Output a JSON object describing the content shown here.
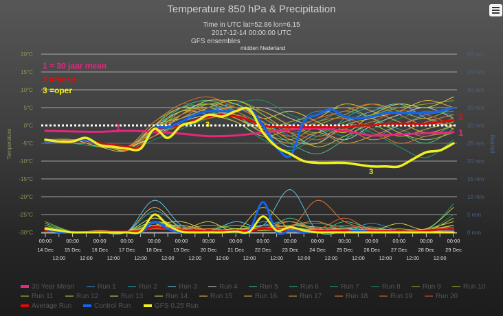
{
  "header": {
    "title": "Temperature 850 hPa & Precipitation",
    "subtitle_lines": [
      "Time in UTC lat=52.86 lon=6.15",
      "2017-12-14 00:00:00 UTC",
      "GFS ensembles",
      "midden Nederland"
    ],
    "menu_icon": "hamburger-menu-icon"
  },
  "annotations": {
    "key1": "1 = 30 jaar mean",
    "key2": "2 =mean",
    "key3": "3 =oper",
    "marker1": "1",
    "marker2": "2",
    "marker3": "3"
  },
  "colors": {
    "mean30": "#e8267f",
    "average": "#dd0a0a",
    "control": "#1565e8",
    "oper": "#f0f020",
    "left_axis": "#8a9a5b",
    "right_axis": "#45648f"
  },
  "chart_data": {
    "type": "line",
    "x_start": "2017-12-14 00:00",
    "x_tick_time_major": "00:00",
    "x_tick_dates": [
      "14 Dec",
      "15 Dec",
      "16 Dec",
      "17 Dec",
      "18 Dec",
      "19 Dec",
      "20 Dec",
      "21 Dec",
      "22 Dec",
      "23 Dec",
      "24 Dec",
      "25 Dec",
      "26 Dec",
      "27 Dec",
      "28 Dec",
      "29 Dec"
    ],
    "x_tick_time_minor": "12:00",
    "y_left": {
      "label": "Temperature",
      "range": [
        -30,
        20
      ],
      "ticks": [
        "20°C",
        "15°C",
        "10°C",
        "5°C",
        "0°C",
        "-5°C",
        "-10°C",
        "-15°C",
        "-20°C",
        "-25°C",
        "-30°C"
      ]
    },
    "y_right": {
      "label": "Rainfall",
      "range": [
        0,
        50
      ],
      "ticks": [
        "50 mm",
        "45 mm",
        "40 mm",
        "35 mm",
        "30 mm",
        "25 mm",
        "20 mm",
        "15 mm",
        "10 mm",
        "5 mm",
        "0 mm"
      ]
    },
    "grid": true,
    "zero_line": "dotted white",
    "legend_position": "bottom",
    "series": [
      {
        "name": "30 Year Mean",
        "color": "#e8267f",
        "interval_hours": 24,
        "temperature": [
          -1.5,
          -1.7,
          -1.8,
          -1.5,
          -1.8,
          -2.3,
          -3,
          -2.8,
          -2,
          -1.2,
          -0.8,
          -1.5,
          -2.8,
          -2.5,
          -2.2,
          -1.9
        ]
      },
      {
        "name": "Run 1",
        "color": "#3a8ad0",
        "interval_hours": 24,
        "temperature": [
          -4,
          -4,
          -5,
          -6,
          -1,
          3,
          5,
          3,
          -2,
          0,
          4,
          2,
          -3,
          0,
          3,
          4
        ],
        "precipitation": [
          1.5,
          0.2,
          0,
          0.3,
          4,
          1,
          0.5,
          0.2,
          3,
          1,
          0.5,
          0.5,
          2.5,
          0.5,
          0.5,
          1
        ]
      },
      {
        "name": "Run 2",
        "color": "#2aa0c0",
        "interval_hours": 24,
        "temperature": [
          -5,
          -4,
          -5,
          -6,
          -2,
          2,
          4,
          6,
          1,
          -3,
          -5,
          2,
          5,
          3,
          0,
          2
        ],
        "precipitation": [
          1,
          0.1,
          0,
          0.2,
          6,
          1.5,
          0.3,
          0.5,
          2,
          3,
          0.4,
          1.5,
          1,
          0.5,
          0.3,
          2
        ]
      },
      {
        "name": "Run 3",
        "color": "#60c0e0",
        "interval_hours": 24,
        "temperature": [
          -4,
          -5,
          -5,
          -6,
          0,
          4,
          6,
          2,
          -1,
          -6,
          -2,
          1,
          4,
          6,
          2,
          -1
        ],
        "precipitation": [
          0.5,
          0,
          0,
          0.2,
          9,
          2,
          0.5,
          3,
          2,
          12,
          0.3,
          0.3,
          0.8,
          0.2,
          0.3,
          0.5
        ]
      },
      {
        "name": "Run 4",
        "color": "#b8c8d0",
        "interval_hours": 24,
        "temperature": [
          -5,
          -4,
          -6,
          -6,
          -3,
          1,
          3,
          4,
          5,
          2,
          -1,
          -4,
          0,
          3,
          5,
          2
        ],
        "precipitation": [
          0.8,
          0,
          0,
          0.1,
          2,
          0.5,
          0.5,
          0.5,
          1,
          2,
          1.5,
          1,
          1.5,
          0.3,
          0.5,
          0.8
        ]
      },
      {
        "name": "Run 5",
        "color": "#40c080",
        "interval_hours": 24,
        "temperature": [
          -4,
          -4,
          -5,
          -7,
          -1,
          5,
          7,
          4,
          0,
          -5,
          -8,
          -4,
          1,
          -2,
          -5,
          -1
        ],
        "precipitation": [
          2.5,
          0.2,
          0,
          0.2,
          3,
          1,
          0.5,
          2,
          0.5,
          4,
          0.5,
          3,
          1,
          0.5,
          0.3,
          1
        ]
      },
      {
        "name": "Run 6",
        "color": "#30b090",
        "interval_hours": 24,
        "temperature": [
          -5,
          -4,
          -5,
          -6,
          -2,
          0,
          3,
          5,
          2,
          -2,
          1,
          4,
          2,
          -1,
          -3,
          0
        ],
        "precipitation": [
          1.5,
          0,
          0.1,
          0.2,
          4,
          0.5,
          0.3,
          0.5,
          1,
          2,
          2.5,
          1.5,
          0.5,
          0.3,
          0.5,
          1.5
        ]
      },
      {
        "name": "Run 7",
        "color": "#20a070",
        "interval_hours": 24,
        "temperature": [
          -4,
          -5,
          -6,
          -6,
          0,
          6,
          4,
          1,
          -4,
          -7,
          -3,
          0,
          -2,
          -6,
          -9,
          -4
        ],
        "precipitation": [
          1,
          0.1,
          0,
          0.1,
          2.5,
          1,
          0.5,
          1,
          0.8,
          1,
          0.5,
          0.5,
          1.5,
          0.3,
          0.4,
          8
        ]
      },
      {
        "name": "Run 8",
        "color": "#209060",
        "interval_hours": 24,
        "temperature": [
          -5,
          -4,
          -5,
          -7,
          -4,
          -1,
          2,
          6,
          7,
          3,
          0,
          -3,
          -1,
          2,
          4,
          3
        ],
        "precipitation": [
          0.5,
          0,
          0,
          0.2,
          2,
          0.5,
          0.3,
          0.5,
          1,
          0.5,
          0.5,
          2,
          0.5,
          0.5,
          0.3,
          5
        ]
      },
      {
        "name": "Run 9",
        "color": "#80b030",
        "interval_hours": 24,
        "temperature": [
          -4,
          -4,
          -5,
          -6,
          1,
          5,
          6,
          7,
          4,
          0,
          -2,
          1,
          3,
          5,
          6,
          7
        ],
        "precipitation": [
          3,
          0.2,
          0,
          0.3,
          3,
          1.5,
          1,
          2,
          1,
          3,
          1,
          1,
          0.5,
          0.5,
          0.8,
          2
        ]
      },
      {
        "name": "Run 10",
        "color": "#98b838",
        "interval_hours": 24,
        "temperature": [
          -5,
          -5,
          -5,
          -6,
          -1,
          3,
          6,
          3,
          -2,
          -4,
          0,
          3,
          6,
          4,
          2,
          5
        ],
        "precipitation": [
          2,
          0.1,
          0,
          0.2,
          2,
          1,
          2,
          1,
          1,
          2,
          1,
          0.5,
          0.5,
          1,
          0.5,
          2
        ]
      },
      {
        "name": "Run 11",
        "color": "#a8c040",
        "interval_hours": 24,
        "temperature": [
          -4,
          -4,
          -6,
          -6,
          -2,
          4,
          5,
          2,
          -1,
          1,
          3,
          5,
          2,
          -2,
          -4,
          -2
        ],
        "precipitation": [
          1.5,
          0,
          0,
          0.1,
          1.5,
          2,
          0.5,
          1,
          0.5,
          1,
          0.8,
          0.5,
          0.5,
          0.3,
          0.5,
          1
        ]
      },
      {
        "name": "Run 12",
        "color": "#b8c848",
        "interval_hours": 24,
        "temperature": [
          -5,
          -4,
          -5,
          -7,
          0,
          2,
          5,
          7,
          3,
          -2,
          -6,
          -3,
          0,
          -3,
          -1,
          1
        ],
        "precipitation": [
          1,
          0,
          0,
          0.2,
          3,
          1,
          0.5,
          0.5,
          2,
          1.5,
          0.5,
          0.5,
          1,
          0.5,
          1,
          3
        ]
      },
      {
        "name": "Run 13",
        "color": "#d0d050",
        "interval_hours": 24,
        "temperature": [
          -4,
          -5,
          -5,
          -6,
          -3,
          3,
          7,
          6,
          2,
          4,
          1,
          -2,
          3,
          6,
          5,
          8
        ],
        "precipitation": [
          0.5,
          0,
          0,
          0.2,
          2,
          3,
          0.5,
          1,
          1,
          1,
          0.5,
          1,
          0.5,
          2.5,
          1,
          7
        ]
      },
      {
        "name": "Run 14",
        "color": "#d8c040",
        "interval_hours": 24,
        "temperature": [
          -5,
          -4,
          -5,
          -6,
          -1,
          4,
          3,
          1,
          -3,
          -1,
          2,
          6,
          4,
          1,
          -2,
          0
        ],
        "precipitation": [
          1,
          0.1,
          0,
          0.3,
          4,
          1,
          3,
          0.5,
          7,
          1,
          1,
          0.5,
          0.5,
          0.5,
          0.3,
          4
        ]
      },
      {
        "name": "Run 15",
        "color": "#e0b848",
        "interval_hours": 24,
        "temperature": [
          -4,
          -4,
          -6,
          -7,
          0,
          5,
          4,
          5,
          1,
          -4,
          -5,
          0,
          2,
          4,
          7,
          5
        ],
        "precipitation": [
          0.8,
          0,
          0,
          0.2,
          7,
          1,
          1,
          0.5,
          1,
          1,
          0.5,
          0.5,
          1,
          0.5,
          0.5,
          2
        ]
      },
      {
        "name": "Run 16",
        "color": "#d8a040",
        "interval_hours": 24,
        "temperature": [
          -5,
          -4,
          -5,
          -6,
          -2,
          1,
          4,
          2,
          -2,
          -5,
          -2,
          -5,
          -3,
          0,
          2,
          -1
        ],
        "precipitation": [
          0.5,
          0,
          0.5,
          0.2,
          2,
          1,
          0.5,
          0.5,
          1,
          3,
          0.5,
          1,
          0.5,
          0.5,
          0.3,
          1
        ]
      },
      {
        "name": "Run 17",
        "color": "#d89040",
        "interval_hours": 24,
        "temperature": [
          -4,
          -5,
          -5,
          -6,
          -1,
          2,
          6,
          5,
          4,
          0,
          -3,
          -1,
          -4,
          -2,
          1,
          3
        ],
        "precipitation": [
          0.5,
          0,
          0.5,
          0.2,
          1,
          2,
          0.5,
          0.5,
          1,
          2,
          3,
          0.5,
          0.5,
          0.3,
          0.3,
          1
        ]
      },
      {
        "name": "Run 18",
        "color": "#e07830",
        "interval_hours": 24,
        "temperature": [
          -5,
          -4,
          -5,
          -7,
          -3,
          0,
          2,
          3,
          0,
          -3,
          1,
          2,
          -1,
          -5,
          -3,
          -2
        ],
        "precipitation": [
          0.5,
          0,
          0.3,
          0.2,
          1,
          0.5,
          1,
          0.5,
          1,
          1,
          9,
          3,
          1,
          0.5,
          0.5,
          1.5
        ]
      },
      {
        "name": "Run 19",
        "color": "#e06830",
        "interval_hours": 24,
        "temperature": [
          -4,
          -4,
          -5,
          -6,
          1,
          6,
          8,
          5,
          2,
          -1,
          2,
          4,
          6,
          3,
          0,
          2
        ],
        "precipitation": [
          0.5,
          0,
          0,
          0.2,
          1,
          1.5,
          0.5,
          0.5,
          1,
          3,
          1,
          4,
          0.5,
          0.3,
          0.3,
          1
        ]
      },
      {
        "name": "Run 20",
        "color": "#d85828",
        "interval_hours": 24,
        "temperature": [
          -5,
          -5,
          -5,
          -6,
          -2,
          3,
          5,
          4,
          -1,
          -2,
          -4,
          -1,
          1,
          4,
          3,
          0
        ],
        "precipitation": [
          0.5,
          0,
          0,
          0.3,
          1,
          1,
          0.5,
          0.5,
          1.5,
          1,
          0.5,
          2,
          0.5,
          0.3,
          0.3,
          1.5
        ]
      },
      {
        "name": "Average Run",
        "color": "#dd0a0a",
        "interval_hours": 12,
        "temperature": [
          -4.5,
          -4.5,
          -4.5,
          -4,
          -5,
          -5.5,
          -6,
          -6,
          -1.5,
          -0.5,
          0,
          1.5,
          2.5,
          3,
          2.5,
          1.5,
          0,
          -0.5,
          -0.5,
          -0.5,
          -0.5,
          -0.5,
          -0.5,
          0,
          0,
          0.5,
          0.5,
          0.5,
          0.5,
          1,
          1.5
        ],
        "precipitation": [
          0.5,
          0.3,
          0.1,
          0.1,
          0.1,
          0.2,
          0.2,
          0.3,
          1.5,
          1,
          0.5,
          0.5,
          0.3,
          0.3,
          0.3,
          0.5,
          1,
          0.8,
          0.5,
          0.5,
          0.4,
          0.5,
          0.5,
          0.4,
          0.3,
          0.3,
          0.3,
          0.2,
          0.5,
          0.8,
          0.8
        ]
      },
      {
        "name": "Control Run",
        "color": "#1565e8",
        "interval_hours": 12,
        "temperature": [
          -4.5,
          -4.5,
          -4.5,
          -4,
          -5.5,
          -6,
          -6.5,
          -6.5,
          -1,
          -0.5,
          1,
          3,
          4,
          4,
          4,
          4.5,
          0,
          -6,
          -8.5,
          1,
          3,
          4.5,
          2.5,
          2,
          2.5,
          3.5,
          3.5,
          3.5,
          3.5,
          4,
          5
        ],
        "precipitation": [
          1,
          0,
          0,
          0,
          0,
          0,
          0,
          0,
          3,
          1,
          0,
          0,
          0,
          0,
          0,
          0.5,
          8.5,
          0,
          0.5,
          0,
          0,
          0,
          0,
          0.5,
          0,
          0,
          0,
          0,
          0,
          0,
          0.2
        ]
      },
      {
        "name": "GFS 0.25 Run",
        "color": "#f0f020",
        "interval_hours": 12,
        "temperature": [
          -4,
          -4.5,
          -4.5,
          -3.5,
          -5.5,
          -6,
          -6.5,
          -6.5,
          -1,
          -3.5,
          0,
          1,
          3,
          2.5,
          4,
          4.5,
          -2,
          -6,
          -8,
          -10,
          -10.5,
          -10.5,
          -10.5,
          -11,
          -11.5,
          -11.5,
          -11.5,
          -9.5,
          -7.5,
          -7,
          -5
        ],
        "precipitation": [
          1,
          0.5,
          0,
          0,
          0,
          0,
          0,
          0.2,
          5,
          2,
          0.2,
          0,
          0,
          0,
          0.2,
          0.2,
          4.5,
          0.5,
          1.5,
          0.5,
          0,
          0,
          0,
          0,
          0,
          0,
          0,
          0,
          0,
          0,
          0
        ]
      }
    ]
  }
}
